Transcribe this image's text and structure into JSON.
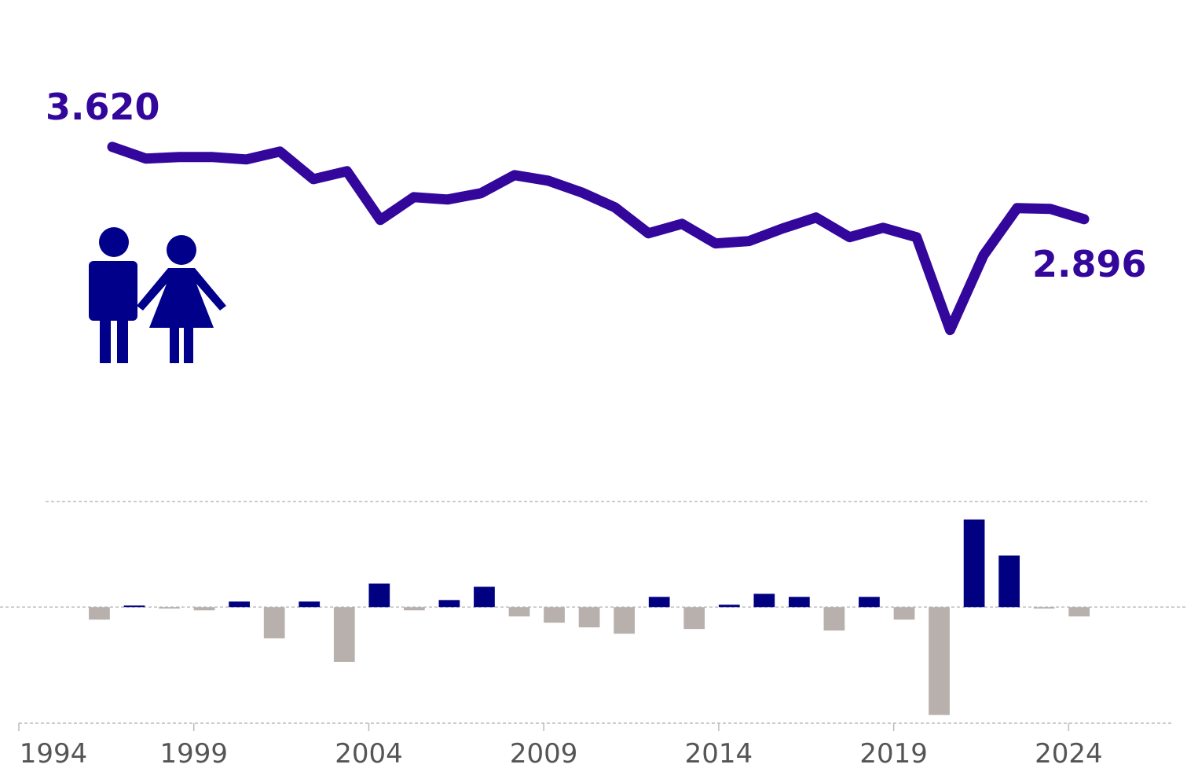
{
  "chart_data": [
    {
      "type": "line",
      "color": "#33069c",
      "x": [
        1995,
        1996,
        1997,
        1998,
        1999,
        2000,
        2001,
        2002,
        2003,
        2004,
        2005,
        2006,
        2007,
        2008,
        2009,
        2010,
        2011,
        2012,
        2013,
        2014,
        2015,
        2016,
        2017,
        2018,
        2019,
        2020,
        2021,
        2022,
        2023,
        2024
      ],
      "values": [
        3.62,
        3.502,
        3.518,
        3.518,
        3.494,
        3.573,
        3.297,
        3.376,
        2.888,
        3.116,
        3.093,
        3.156,
        3.337,
        3.282,
        3.164,
        3.014,
        2.754,
        2.849,
        2.652,
        2.676,
        2.802,
        2.912,
        2.715,
        2.809,
        2.715,
        1.786,
        2.534,
        3.006,
        2.998,
        2.896
      ],
      "xlim": [
        1995,
        2024
      ],
      "ylim": [
        1.5,
        3.8
      ],
      "annotations": [
        "3.620",
        "2.896"
      ]
    },
    {
      "type": "bar",
      "positive_color": "#000080",
      "negative_color": "#b8b0ac",
      "x": [
        1996,
        1997,
        1998,
        1999,
        2000,
        2001,
        2002,
        2003,
        2004,
        2005,
        2006,
        2007,
        2008,
        2009,
        2010,
        2011,
        2012,
        2013,
        2014,
        2015,
        2016,
        2017,
        2018,
        2019,
        2020,
        2021,
        2022,
        2023,
        2024
      ],
      "values": [
        -0.107,
        0.013,
        -0.013,
        -0.027,
        0.047,
        -0.267,
        0.047,
        -0.467,
        0.2,
        -0.027,
        0.06,
        0.173,
        -0.08,
        -0.133,
        -0.173,
        -0.227,
        0.087,
        -0.187,
        0.02,
        0.113,
        0.087,
        -0.2,
        0.087,
        -0.107,
        -0.92,
        0.747,
        0.44,
        -0.013,
        -0.08
      ],
      "xlim": [
        1994,
        2027
      ],
      "ylim": [
        -0.99,
        0.9
      ],
      "xticks": [
        1994,
        1999,
        2004,
        2009,
        2014,
        2019,
        2024
      ]
    }
  ]
}
